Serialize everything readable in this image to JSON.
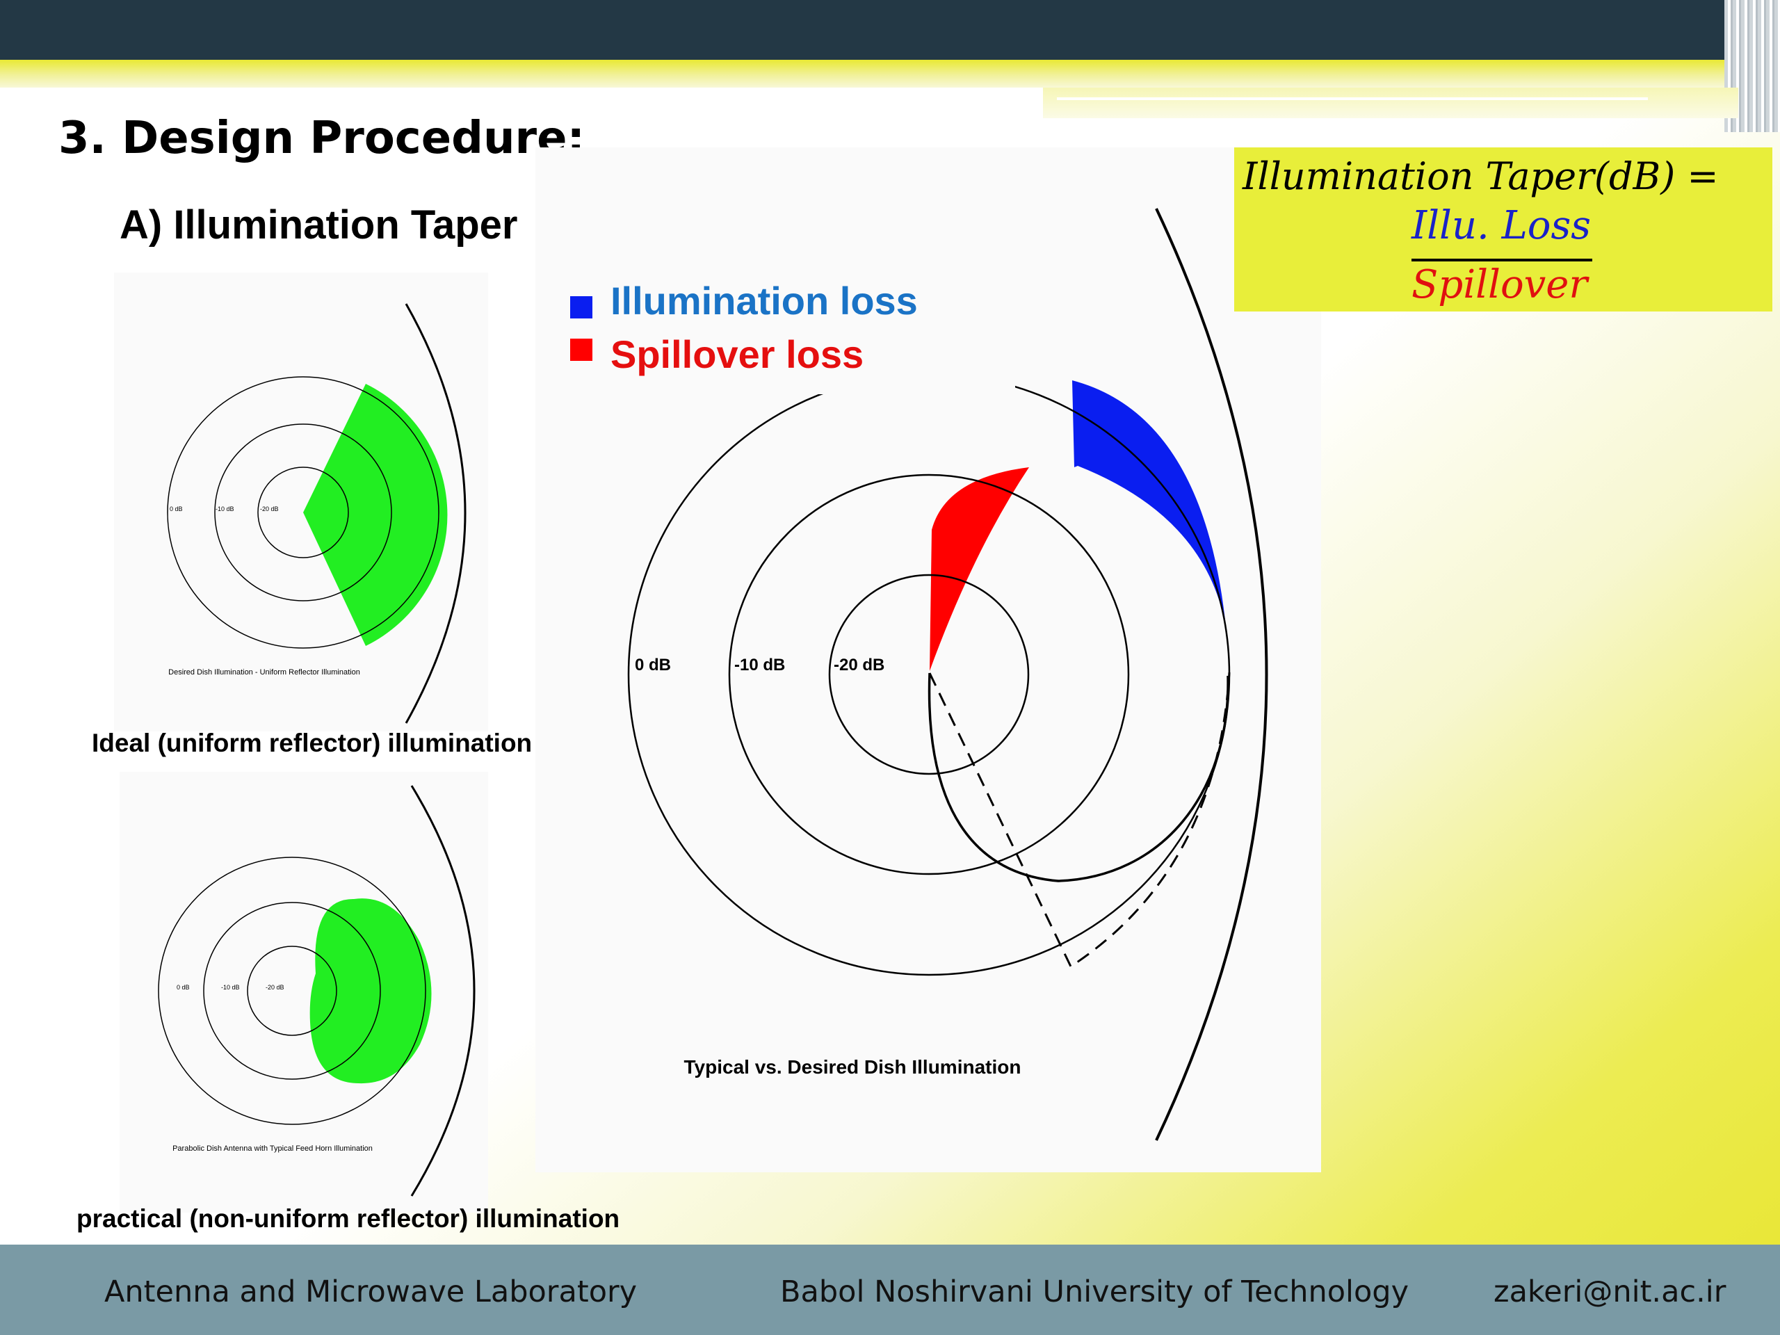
{
  "slide": {
    "title": "3. Design Procedure:",
    "subtitle": "A) Illumination Taper"
  },
  "formula": {
    "lhs": "Illumination Taper(dB) =",
    "numerator": "Illu. Loss",
    "denominator": "Spillover",
    "numerator_color": "#1a22c8",
    "denominator_color": "#e01010"
  },
  "legend": {
    "illumination_loss": {
      "label": "Illumination loss",
      "color": "#0a1ef0",
      "text_color": "#1a73c6"
    },
    "spillover_loss": {
      "label": "Spillover loss",
      "color": "#ff0000",
      "text_color": "#e50f0f"
    }
  },
  "ideal_diagram": {
    "ring_labels": [
      "0 dB",
      "-10 dB",
      "-20 dB"
    ],
    "inner_caption": "Desired Dish Illumination - Uniform Reflector Illumination",
    "caption": "Ideal (uniform reflector) illumination",
    "fill_color": "#22ee22"
  },
  "practical_diagram": {
    "ring_labels": [
      "0 dB",
      "-10 dB",
      "-20 dB"
    ],
    "inner_caption": "Parabolic Dish Antenna with Typical Feed Horn Illumination",
    "caption": "practical (non-uniform reflector) illumination",
    "fill_color": "#22ee22"
  },
  "main_diagram": {
    "ring_labels": [
      "0 dB",
      "-10 dB",
      "-20 dB"
    ],
    "caption": "Typical vs. Desired Dish Illumination"
  },
  "footer": {
    "lab": "Antenna and Microwave Laboratory",
    "university": "Babol Noshirvani University of Technology",
    "email": "zakeri@nit.ac.ir"
  }
}
